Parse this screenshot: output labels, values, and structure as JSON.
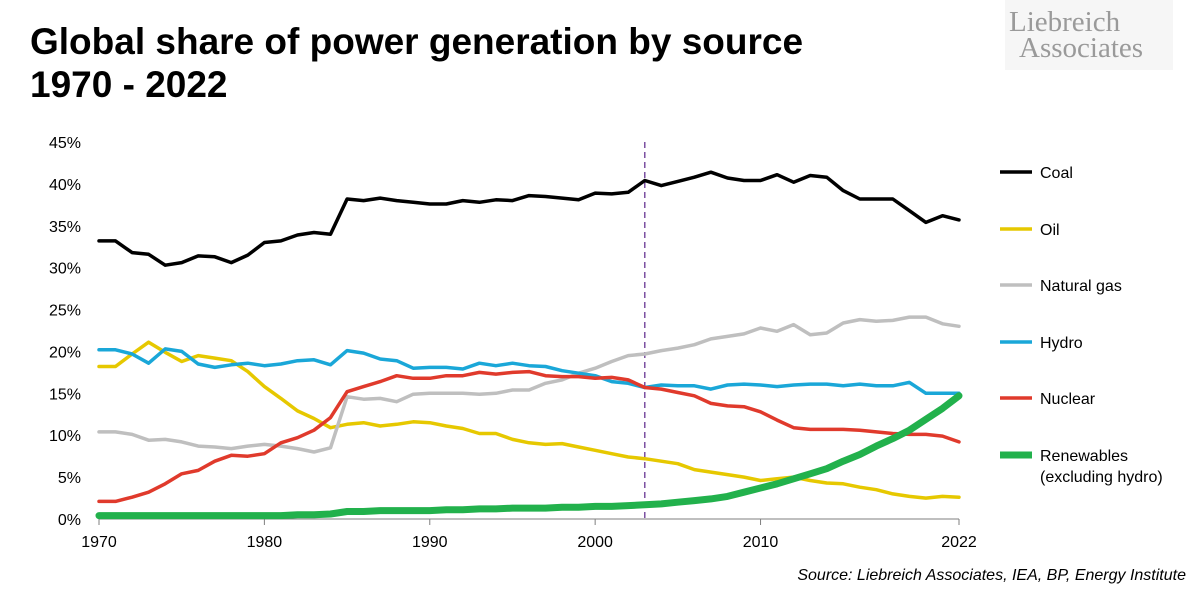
{
  "header": {
    "title_line1": "Global share of power generation by source",
    "title_line2": "1970 - 2022"
  },
  "logo": {
    "line1": "Liebreich",
    "line2": "Associates"
  },
  "source": "Source: Liebreich Associates, IEA, BP, Energy Institute",
  "chart_data": {
    "type": "line",
    "x_tick_labels": [
      "1970",
      "1980",
      "1990",
      "2000",
      "2010",
      "2022"
    ],
    "x_ticks": [
      1970,
      1980,
      1990,
      2000,
      2010,
      2022
    ],
    "y_tick_labels": [
      "0%",
      "5%",
      "10%",
      "15%",
      "20%",
      "25%",
      "30%",
      "35%",
      "40%",
      "45%"
    ],
    "xlim": [
      1970,
      2022
    ],
    "ylim": [
      0,
      45
    ],
    "grid": false,
    "legend_placement": "right",
    "marker_line": {
      "x": 2003,
      "style": "dashed",
      "color": "#7b4fa0"
    },
    "x": [
      1970,
      1971,
      1972,
      1973,
      1974,
      1975,
      1976,
      1977,
      1978,
      1979,
      1980,
      1981,
      1982,
      1983,
      1984,
      1985,
      1986,
      1987,
      1988,
      1989,
      1990,
      1991,
      1992,
      1993,
      1994,
      1995,
      1996,
      1997,
      1998,
      1999,
      2000,
      2001,
      2002,
      2003,
      2004,
      2005,
      2006,
      2007,
      2008,
      2009,
      2010,
      2011,
      2012,
      2013,
      2014,
      2015,
      2016,
      2017,
      2018,
      2019,
      2020,
      2021,
      2022
    ],
    "series": [
      {
        "name": "Coal",
        "color": "#000000",
        "width": 3.5,
        "values": [
          33.2,
          33.2,
          31.8,
          31.6,
          30.3,
          30.6,
          31.4,
          31.3,
          30.6,
          31.5,
          33.0,
          33.2,
          33.9,
          34.2,
          34.0,
          38.2,
          38.0,
          38.3,
          38.0,
          37.8,
          37.6,
          37.6,
          38.0,
          37.8,
          38.1,
          38.0,
          38.6,
          38.5,
          38.3,
          38.1,
          38.9,
          38.8,
          39.0,
          40.4,
          39.8,
          40.3,
          40.8,
          41.4,
          40.7,
          40.4,
          40.4,
          41.1,
          40.2,
          41.0,
          40.8,
          39.2,
          38.2,
          38.2,
          38.2,
          36.8,
          35.4,
          36.2,
          35.7
        ]
      },
      {
        "name": "Oil",
        "color": "#e6c800",
        "width": 3.5,
        "values": [
          18.2,
          18.2,
          19.7,
          21.1,
          19.9,
          18.8,
          19.5,
          19.2,
          18.9,
          17.6,
          15.8,
          14.4,
          12.9,
          12.0,
          10.9,
          11.3,
          11.5,
          11.1,
          11.3,
          11.6,
          11.5,
          11.1,
          10.8,
          10.2,
          10.2,
          9.5,
          9.1,
          8.9,
          9.0,
          8.6,
          8.2,
          7.8,
          7.4,
          7.2,
          6.9,
          6.6,
          5.9,
          5.6,
          5.3,
          5.0,
          4.6,
          4.8,
          5.0,
          4.6,
          4.3,
          4.2,
          3.8,
          3.5,
          3.0,
          2.7,
          2.5,
          2.7,
          2.6
        ]
      },
      {
        "name": "Natural gas",
        "color": "#bfbfbf",
        "width": 3.5,
        "values": [
          10.4,
          10.4,
          10.1,
          9.4,
          9.5,
          9.2,
          8.7,
          8.6,
          8.4,
          8.7,
          8.9,
          8.7,
          8.4,
          8.0,
          8.5,
          14.6,
          14.3,
          14.4,
          14.0,
          14.9,
          15.0,
          15.0,
          15.0,
          14.9,
          15.0,
          15.4,
          15.4,
          16.2,
          16.6,
          17.4,
          18.0,
          18.8,
          19.5,
          19.7,
          20.1,
          20.4,
          20.8,
          21.5,
          21.8,
          22.1,
          22.8,
          22.4,
          23.2,
          22.0,
          22.2,
          23.4,
          23.8,
          23.6,
          23.7,
          24.1,
          24.1,
          23.3,
          23.0
        ]
      },
      {
        "name": "Hydro",
        "color": "#1aa7d8",
        "width": 3.5,
        "values": [
          20.2,
          20.2,
          19.7,
          18.6,
          20.3,
          20.0,
          18.5,
          18.1,
          18.4,
          18.6,
          18.3,
          18.5,
          18.9,
          19.0,
          18.4,
          20.1,
          19.8,
          19.1,
          18.9,
          18.0,
          18.1,
          18.1,
          17.9,
          18.6,
          18.3,
          18.6,
          18.3,
          18.2,
          17.7,
          17.4,
          17.1,
          16.4,
          16.2,
          15.7,
          16.0,
          15.9,
          15.9,
          15.5,
          16.0,
          16.1,
          16.0,
          15.8,
          16.0,
          16.1,
          16.1,
          15.9,
          16.1,
          15.9,
          15.9,
          16.3,
          15.0,
          15.0,
          15.0
        ]
      },
      {
        "name": "Nuclear",
        "color": "#e03a2c",
        "width": 3.5,
        "values": [
          2.1,
          2.1,
          2.6,
          3.2,
          4.2,
          5.4,
          5.8,
          6.9,
          7.6,
          7.5,
          7.8,
          9.1,
          9.7,
          10.6,
          12.1,
          15.2,
          15.8,
          16.4,
          17.1,
          16.8,
          16.8,
          17.1,
          17.1,
          17.5,
          17.3,
          17.5,
          17.6,
          17.1,
          17.0,
          17.0,
          16.8,
          16.9,
          16.6,
          15.7,
          15.5,
          15.1,
          14.7,
          13.8,
          13.5,
          13.4,
          12.8,
          11.8,
          10.9,
          10.7,
          10.7,
          10.7,
          10.6,
          10.4,
          10.2,
          10.1,
          10.1,
          9.9,
          9.2
        ]
      },
      {
        "name": "Renewables (excluding hydro)",
        "legend_line1": "Renewables",
        "legend_line2": "(excluding hydro)",
        "color": "#22b14c",
        "width": 7,
        "values": [
          0.4,
          0.4,
          0.4,
          0.4,
          0.4,
          0.4,
          0.4,
          0.4,
          0.4,
          0.4,
          0.4,
          0.4,
          0.5,
          0.5,
          0.6,
          0.9,
          0.9,
          1.0,
          1.0,
          1.0,
          1.0,
          1.1,
          1.1,
          1.2,
          1.2,
          1.3,
          1.3,
          1.3,
          1.4,
          1.4,
          1.5,
          1.5,
          1.6,
          1.7,
          1.8,
          2.0,
          2.2,
          2.4,
          2.7,
          3.2,
          3.7,
          4.2,
          4.8,
          5.4,
          6.0,
          6.9,
          7.7,
          8.7,
          9.6,
          10.6,
          11.9,
          13.2,
          14.7
        ]
      }
    ]
  }
}
